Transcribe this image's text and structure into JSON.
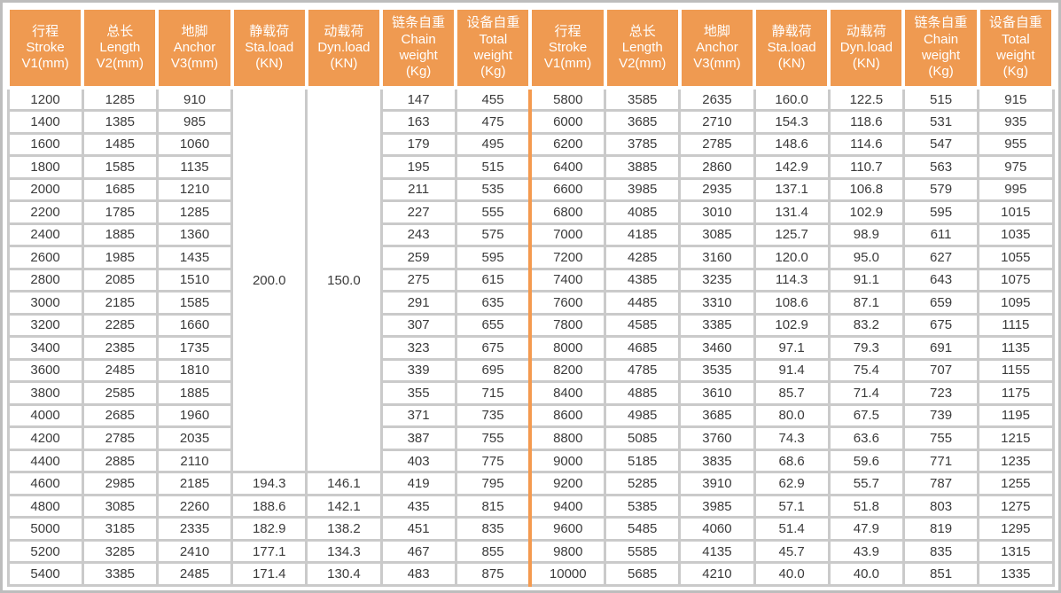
{
  "colors": {
    "header_bg": "#ef9a51",
    "header_text": "#ffffff",
    "grid_line": "#cacaca",
    "outer_border": "#bdbdbd",
    "half_divider": "#f49a4f",
    "cell_text": "#3b3b3b"
  },
  "table": {
    "headers": [
      {
        "cn": "行程",
        "en": "Stroke",
        "unit": "V1(mm)"
      },
      {
        "cn": "总长",
        "en": "Length",
        "unit": "V2(mm)"
      },
      {
        "cn": "地脚",
        "en": "Anchor",
        "unit": "V3(mm)"
      },
      {
        "cn": "静载荷",
        "en": "Sta.load",
        "unit": "(KN)"
      },
      {
        "cn": "动载荷",
        "en": "Dyn.load",
        "unit": "(KN)"
      },
      {
        "cn": "链条自重",
        "en": "Chain",
        "en2": "weight",
        "unit": "(Kg)"
      },
      {
        "cn": "设备自重",
        "en": "Total",
        "en2": "weight",
        "unit": "(Kg)"
      }
    ],
    "merged": {
      "sta_load": "200.0",
      "dyn_load": "150.0",
      "row_span": 17
    },
    "left_rows": [
      [
        "1200",
        "1285",
        "910",
        null,
        null,
        "147",
        "455"
      ],
      [
        "1400",
        "1385",
        "985",
        null,
        null,
        "163",
        "475"
      ],
      [
        "1600",
        "1485",
        "1060",
        null,
        null,
        "179",
        "495"
      ],
      [
        "1800",
        "1585",
        "1135",
        null,
        null,
        "195",
        "515"
      ],
      [
        "2000",
        "1685",
        "1210",
        null,
        null,
        "211",
        "535"
      ],
      [
        "2200",
        "1785",
        "1285",
        null,
        null,
        "227",
        "555"
      ],
      [
        "2400",
        "1885",
        "1360",
        null,
        null,
        "243",
        "575"
      ],
      [
        "2600",
        "1985",
        "1435",
        null,
        null,
        "259",
        "595"
      ],
      [
        "2800",
        "2085",
        "1510",
        null,
        null,
        "275",
        "615"
      ],
      [
        "3000",
        "2185",
        "1585",
        null,
        null,
        "291",
        "635"
      ],
      [
        "3200",
        "2285",
        "1660",
        null,
        null,
        "307",
        "655"
      ],
      [
        "3400",
        "2385",
        "1735",
        null,
        null,
        "323",
        "675"
      ],
      [
        "3600",
        "2485",
        "1810",
        null,
        null,
        "339",
        "695"
      ],
      [
        "3800",
        "2585",
        "1885",
        null,
        null,
        "355",
        "715"
      ],
      [
        "4000",
        "2685",
        "1960",
        null,
        null,
        "371",
        "735"
      ],
      [
        "4200",
        "2785",
        "2035",
        null,
        null,
        "387",
        "755"
      ],
      [
        "4400",
        "2885",
        "2110",
        null,
        null,
        "403",
        "775"
      ],
      [
        "4600",
        "2985",
        "2185",
        "194.3",
        "146.1",
        "419",
        "795"
      ],
      [
        "4800",
        "3085",
        "2260",
        "188.6",
        "142.1",
        "435",
        "815"
      ],
      [
        "5000",
        "3185",
        "2335",
        "182.9",
        "138.2",
        "451",
        "835"
      ],
      [
        "5200",
        "3285",
        "2410",
        "177.1",
        "134.3",
        "467",
        "855"
      ],
      [
        "5400",
        "3385",
        "2485",
        "171.4",
        "130.4",
        "483",
        "875"
      ]
    ],
    "right_rows": [
      [
        "5800",
        "3585",
        "2635",
        "160.0",
        "122.5",
        "515",
        "915"
      ],
      [
        "6000",
        "3685",
        "2710",
        "154.3",
        "118.6",
        "531",
        "935"
      ],
      [
        "6200",
        "3785",
        "2785",
        "148.6",
        "114.6",
        "547",
        "955"
      ],
      [
        "6400",
        "3885",
        "2860",
        "142.9",
        "110.7",
        "563",
        "975"
      ],
      [
        "6600",
        "3985",
        "2935",
        "137.1",
        "106.8",
        "579",
        "995"
      ],
      [
        "6800",
        "4085",
        "3010",
        "131.4",
        "102.9",
        "595",
        "1015"
      ],
      [
        "7000",
        "4185",
        "3085",
        "125.7",
        "98.9",
        "611",
        "1035"
      ],
      [
        "7200",
        "4285",
        "3160",
        "120.0",
        "95.0",
        "627",
        "1055"
      ],
      [
        "7400",
        "4385",
        "3235",
        "114.3",
        "91.1",
        "643",
        "1075"
      ],
      [
        "7600",
        "4485",
        "3310",
        "108.6",
        "87.1",
        "659",
        "1095"
      ],
      [
        "7800",
        "4585",
        "3385",
        "102.9",
        "83.2",
        "675",
        "1115"
      ],
      [
        "8000",
        "4685",
        "3460",
        "97.1",
        "79.3",
        "691",
        "1135"
      ],
      [
        "8200",
        "4785",
        "3535",
        "91.4",
        "75.4",
        "707",
        "1155"
      ],
      [
        "8400",
        "4885",
        "3610",
        "85.7",
        "71.4",
        "723",
        "1175"
      ],
      [
        "8600",
        "4985",
        "3685",
        "80.0",
        "67.5",
        "739",
        "1195"
      ],
      [
        "8800",
        "5085",
        "3760",
        "74.3",
        "63.6",
        "755",
        "1215"
      ],
      [
        "9000",
        "5185",
        "3835",
        "68.6",
        "59.6",
        "771",
        "1235"
      ],
      [
        "9200",
        "5285",
        "3910",
        "62.9",
        "55.7",
        "787",
        "1255"
      ],
      [
        "9400",
        "5385",
        "3985",
        "57.1",
        "51.8",
        "803",
        "1275"
      ],
      [
        "9600",
        "5485",
        "4060",
        "51.4",
        "47.9",
        "819",
        "1295"
      ],
      [
        "9800",
        "5585",
        "4135",
        "45.7",
        "43.9",
        "835",
        "1315"
      ],
      [
        "10000",
        "5685",
        "4210",
        "40.0",
        "40.0",
        "851",
        "1335"
      ]
    ]
  }
}
